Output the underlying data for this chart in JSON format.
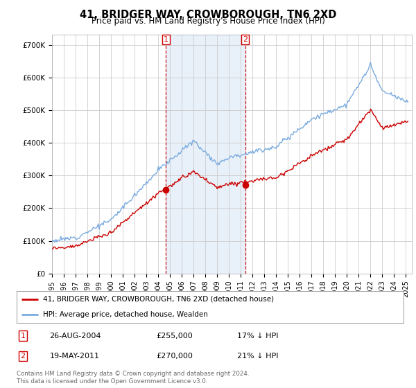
{
  "title": "41, BRIDGER WAY, CROWBOROUGH, TN6 2XD",
  "subtitle": "Price paid vs. HM Land Registry's House Price Index (HPI)",
  "ylabel_ticks": [
    "£0",
    "£100K",
    "£200K",
    "£300K",
    "£400K",
    "£500K",
    "£600K",
    "£700K"
  ],
  "ylim": [
    0,
    730000
  ],
  "xlim_start": 1995.0,
  "xlim_end": 2025.5,
  "red_line_label": "41, BRIDGER WAY, CROWBOROUGH, TN6 2XD (detached house)",
  "blue_line_label": "HPI: Average price, detached house, Wealden",
  "transaction1_date": "26-AUG-2004",
  "transaction1_price": 255000,
  "transaction1_hpi": "17% ↓ HPI",
  "transaction1_x": 2004.65,
  "transaction2_date": "19-MAY-2011",
  "transaction2_price": 270000,
  "transaction2_hpi": "21% ↓ HPI",
  "transaction2_x": 2011.38,
  "shade_color": "#dce9f7",
  "shade_alpha": 0.65,
  "red_color": "#cc0000",
  "blue_color": "#7aabe0",
  "footer_text": "Contains HM Land Registry data © Crown copyright and database right 2024.\nThis data is licensed under the Open Government Licence v3.0.",
  "background_color": "#ffffff",
  "grid_color": "#cccccc"
}
